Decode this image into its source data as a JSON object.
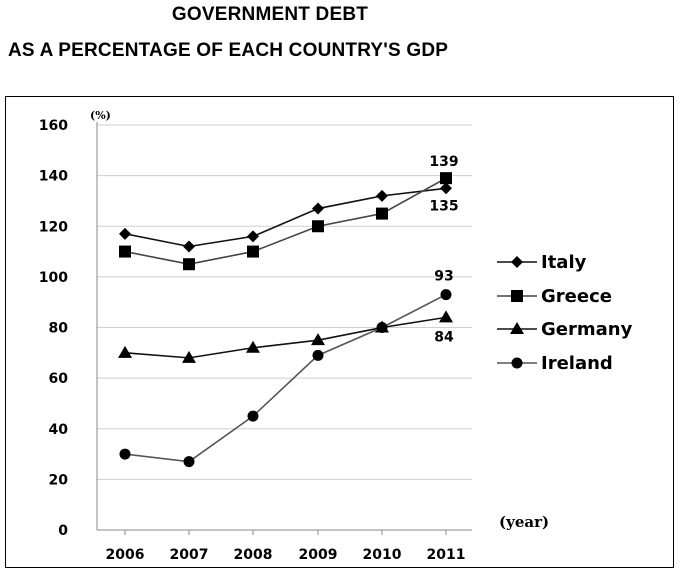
{
  "title_line1": "GOVERNMENT DEBT",
  "title_line2": "AS A PERCENTAGE OF EACH COUNTRY'S GDP",
  "chart_data": {
    "type": "line",
    "title": "GOVERNMENT DEBT AS A PERCENTAGE OF EACH COUNTRY'S GDP",
    "x": [
      "2006",
      "2007",
      "2008",
      "2009",
      "2010",
      "2011"
    ],
    "xlabel": "(year)",
    "ylabel": "(%)",
    "ylim": [
      0,
      160
    ],
    "yticks": [
      "0",
      "20",
      "40",
      "60",
      "80",
      "100",
      "120",
      "140",
      "160"
    ],
    "grid": true,
    "legend_position": "right",
    "series": [
      {
        "name": "Italy",
        "marker": "diamond",
        "values": [
          117,
          112,
          116,
          127,
          132,
          135
        ]
      },
      {
        "name": "Greece",
        "marker": "square",
        "values": [
          110,
          105,
          110,
          120,
          125,
          139
        ]
      },
      {
        "name": "Germany",
        "marker": "triangle",
        "values": [
          70,
          68,
          72,
          75,
          80,
          84
        ]
      },
      {
        "name": "Ireland",
        "marker": "circle",
        "values": [
          30,
          27,
          45,
          69,
          80,
          93
        ]
      }
    ],
    "data_labels": [
      {
        "series": "Greece",
        "x": "2011",
        "text": "139"
      },
      {
        "series": "Italy",
        "x": "2011",
        "text": "135"
      },
      {
        "series": "Ireland",
        "x": "2011",
        "text": "93"
      },
      {
        "series": "Germany",
        "x": "2011",
        "text": "84"
      }
    ]
  }
}
